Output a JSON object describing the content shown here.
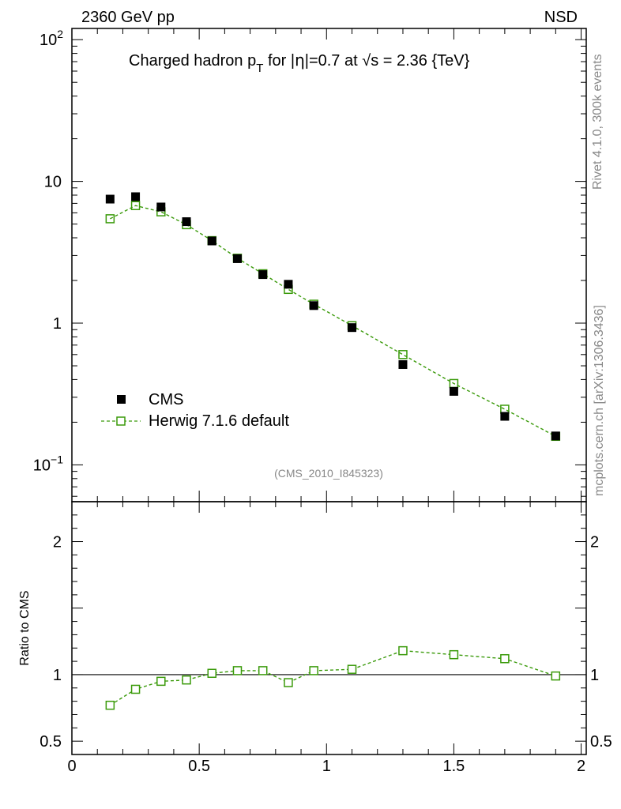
{
  "header": {
    "left": "2360 GeV pp",
    "right": "NSD"
  },
  "side_labels": {
    "rivet": "Rivet 4.1.0,  300k events",
    "mcplots": "mcplots.cern.ch [arXiv:1306.3436]"
  },
  "chart_data": {
    "type": "scatter",
    "title": "Charged hadron p_T for |η|=0.7 at √s = 2.36 {TeV}",
    "analysis_id": "(CMS_2010_I845323)",
    "main": {
      "yscale": "log",
      "ylim": [
        0.055,
        120
      ],
      "yticks": [
        {
          "value": 100,
          "label": "10",
          "sup": "2"
        },
        {
          "value": 10,
          "label": "10"
        },
        {
          "value": 1,
          "label": "1"
        },
        {
          "value": 0.1,
          "label": "10",
          "sup": "−1"
        }
      ]
    },
    "ratio": {
      "ylabel": "Ratio to CMS",
      "ylim": [
        0.4,
        2.3
      ],
      "yticks": [
        {
          "value": 2,
          "label": "2"
        },
        {
          "value": 1,
          "label": "1"
        },
        {
          "value": 0.5,
          "label": "0.5"
        }
      ]
    },
    "xlim": [
      0,
      2.02
    ],
    "xticks": [
      {
        "value": 0,
        "label": "0"
      },
      {
        "value": 0.5,
        "label": "0.5"
      },
      {
        "value": 1,
        "label": "1"
      },
      {
        "value": 1.5,
        "label": "1.5"
      },
      {
        "value": 2,
        "label": "2"
      }
    ],
    "x": [
      0.15,
      0.25,
      0.35,
      0.45,
      0.55,
      0.65,
      0.75,
      0.85,
      0.95,
      1.1,
      1.3,
      1.5,
      1.7,
      1.9
    ],
    "series": [
      {
        "name": "CMS",
        "color": "#000000",
        "marker": "filled-square",
        "values": [
          7.5,
          7.8,
          6.6,
          5.2,
          3.8,
          2.85,
          2.2,
          1.88,
          1.33,
          0.93,
          0.51,
          0.33,
          0.22,
          0.16
        ]
      },
      {
        "name": "Herwig 7.1.6 default",
        "color": "#3a9a0a",
        "marker": "open-square",
        "line": "dashed",
        "values": [
          5.45,
          6.75,
          6.1,
          4.95,
          3.82,
          2.87,
          2.23,
          1.73,
          1.36,
          0.96,
          0.6,
          0.375,
          0.247,
          0.159
        ]
      }
    ],
    "ratio_values": [
      0.77,
      0.89,
      0.95,
      0.96,
      1.01,
      1.03,
      1.03,
      0.94,
      1.03,
      1.04,
      1.18,
      1.15,
      1.12,
      0.99
    ]
  }
}
